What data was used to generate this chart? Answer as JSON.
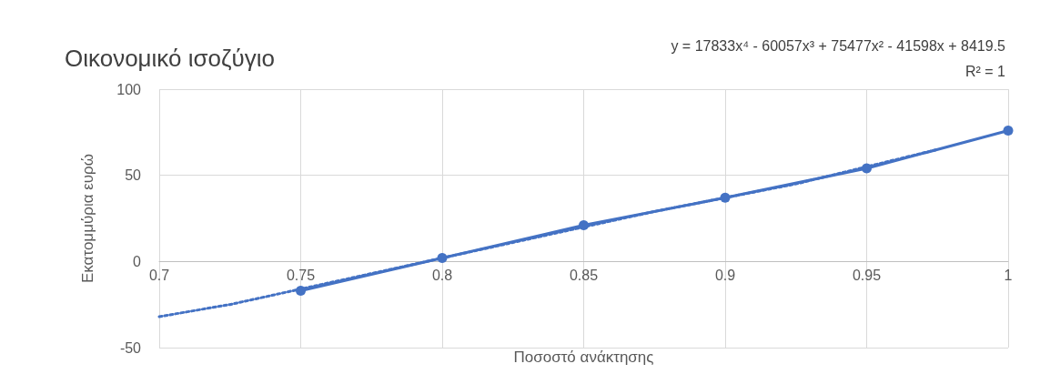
{
  "chart_data": {
    "type": "line",
    "title": "Οικονομικό ισοζύγιο",
    "xlabel": "Ποσοστό ανάκτησης",
    "ylabel": "Εκατομμύρια ευρώ",
    "annotations": [
      "y = 17833x⁴ - 60057x³ + 75477x² - 41598x + 8419.5",
      "R² = 1"
    ],
    "x": [
      0.75,
      0.8,
      0.85,
      0.9,
      0.95,
      1
    ],
    "series": [
      {
        "type": "line",
        "color": "#4472c4",
        "line_style": "dotted",
        "marker": "none",
        "x": [
          0.7,
          0.725,
          0.775,
          0.825,
          0.875,
          0.925,
          0.975
        ],
        "values": [
          -32,
          -25,
          -7,
          11,
          29,
          45,
          65
        ]
      },
      {
        "color": "#4472c4",
        "values": [
          -17,
          2,
          21,
          37,
          54,
          76
        ]
      }
    ],
    "xlim": [
      0.7,
      1
    ],
    "xticks": [
      0.7,
      0.75,
      0.8,
      0.85,
      0.9,
      0.95,
      1
    ],
    "ylim": [
      -50,
      100
    ],
    "yticks": [
      -50,
      0,
      50,
      100
    ],
    "grid": true,
    "marker": "circle",
    "line_style": "solid"
  }
}
